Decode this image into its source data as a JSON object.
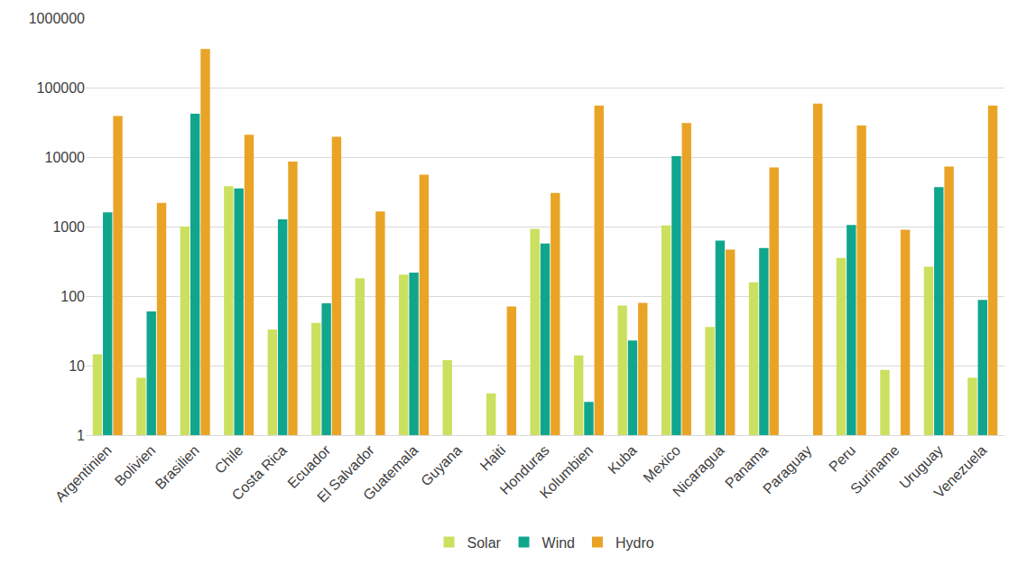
{
  "chart_data": {
    "type": "bar",
    "categories": [
      "Argentinien",
      "Bolivien",
      "Brasilien",
      "Chile",
      "Costa Rica",
      "Ecuador",
      "El Salvador",
      "Guatemala",
      "Guyana",
      "Haiti",
      "Honduras",
      "Kolumbien",
      "Kuba",
      "Mexico",
      "Nicaragua",
      "Panama",
      "Paraguay",
      "Peru",
      "Suriname",
      "Uruguay",
      "Venezuela"
    ],
    "series": [
      {
        "name": "Solar",
        "color": "#cbe05e",
        "values": [
          14.5,
          6.7,
          1000,
          3800,
          33,
          41,
          180,
          203,
          12,
          4,
          930,
          14,
          73,
          1040,
          36,
          158,
          null,
          355,
          8.7,
          265,
          6.7
        ]
      },
      {
        "name": "Wind",
        "color": "#10a68d",
        "values": [
          1600,
          60,
          42000,
          3550,
          1270,
          79,
          null,
          218,
          null,
          null,
          570,
          3,
          23,
          10300,
          630,
          490,
          null,
          1050,
          null,
          3700,
          88
        ]
      },
      {
        "name": "Hydro",
        "color": "#e9a426",
        "values": [
          39000,
          2200,
          360000,
          21000,
          8600,
          19600,
          1650,
          5600,
          null,
          71,
          3050,
          55000,
          80,
          31000,
          465,
          7100,
          59000,
          28500,
          900,
          7300,
          55000
        ]
      }
    ],
    "log": "y",
    "ylim": [
      1,
      1000000
    ],
    "yticks": [
      1,
      10,
      100,
      1000,
      10000,
      100000,
      1000000
    ],
    "grid": true,
    "legend": "bottom"
  }
}
